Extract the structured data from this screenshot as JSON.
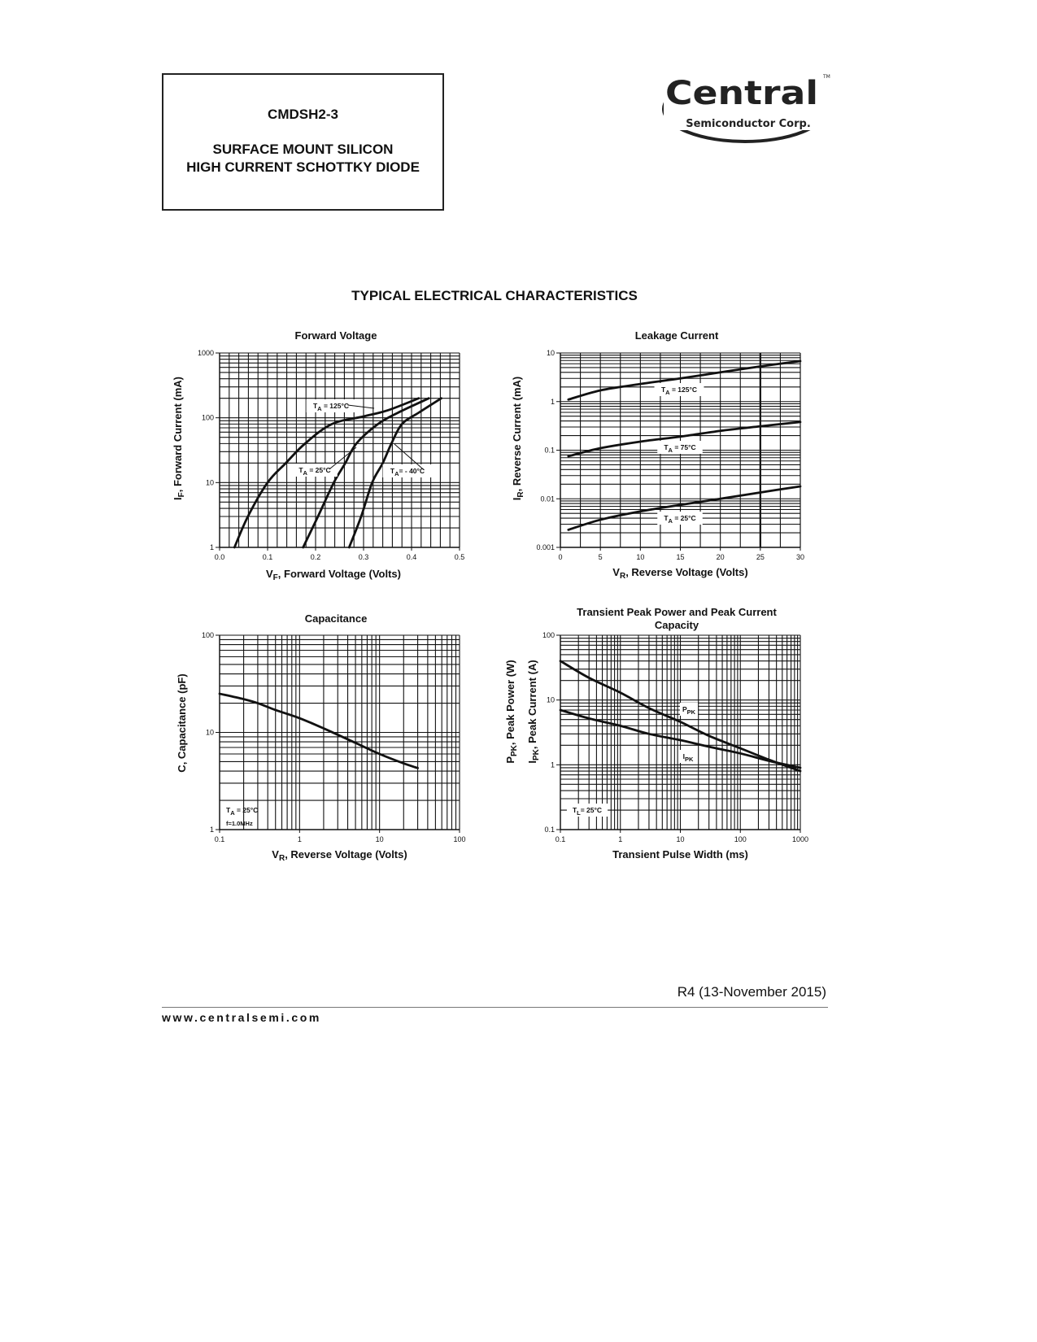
{
  "header": {
    "part_number": "CMDSH2-3",
    "desc_line1": "SURFACE MOUNT SILICON",
    "desc_line2": "HIGH CURRENT SCHOTTKY DIODE"
  },
  "logo": {
    "brand": "Central",
    "sub": "Semiconductor Corp.",
    "tm": "TM"
  },
  "section_title": "TYPICAL ELECTRICAL CHARACTERISTICS",
  "footer": {
    "revision": "R4 (13-November 2015)",
    "website": "www.centralsemi.com"
  },
  "colors": {
    "ink": "#111111",
    "grid": "#111111",
    "background": "#ffffff"
  },
  "chart_data": [
    {
      "id": "forward",
      "type": "line",
      "title": "Forward Voltage",
      "xlabel": {
        "pre": "V",
        "sub": "F",
        "post": ", Forward Voltage (Volts)"
      },
      "ylabel": {
        "pre": "I",
        "sub": "F",
        "post": ", Forward Current (mA)"
      },
      "xscale": "linear",
      "yscale": "log",
      "xlim": [
        0,
        0.5
      ],
      "ylim": [
        1,
        1000
      ],
      "xticks": [
        "0.0",
        "0.1",
        "0.2",
        "0.3",
        "0.4",
        "0.5"
      ],
      "yticks": [
        "1",
        "10",
        "100",
        "1000"
      ],
      "grid": true,
      "series": [
        {
          "name": "TA = 125°C",
          "x": [
            0.031,
            0.059,
            0.1,
            0.138,
            0.178,
            0.234,
            0.3,
            0.35,
            0.415
          ],
          "y": [
            1,
            3,
            10,
            20,
            40,
            80,
            105,
            130,
            200
          ]
        },
        {
          "name": "TA = 25°C",
          "x": [
            0.174,
            0.205,
            0.238,
            0.262,
            0.285,
            0.33,
            0.372,
            0.436
          ],
          "y": [
            1,
            3,
            10,
            20,
            40,
            80,
            120,
            200
          ]
        },
        {
          "name": "TA= - 40°C",
          "x": [
            0.27,
            0.295,
            0.318,
            0.34,
            0.358,
            0.38,
            0.415,
            0.462
          ],
          "y": [
            1,
            3,
            10,
            20,
            40,
            80,
            120,
            200
          ]
        }
      ],
      "annotations": [
        {
          "pre": "T",
          "sub": "A",
          "post": " = 125°C"
        },
        {
          "pre": "T",
          "sub": "A",
          "post": " = 25°C"
        },
        {
          "pre": "T",
          "sub": "A",
          "post": "= - 40°C"
        }
      ]
    },
    {
      "id": "leakage",
      "type": "line",
      "title": "Leakage Current",
      "xlabel": {
        "pre": "V",
        "sub": "R",
        "post": ", Reverse Voltage (Volts)"
      },
      "ylabel": {
        "pre": "I",
        "sub": "R",
        "post": ", Reverse Current (mA)"
      },
      "xscale": "linear",
      "yscale": "log",
      "xlim": [
        0,
        30
      ],
      "ylim": [
        0.001,
        10
      ],
      "xticks": [
        "0",
        "5",
        "10",
        "15",
        "20",
        "25",
        "30"
      ],
      "yticks": [
        "0.001",
        "0.01",
        "0.1",
        "1",
        "10"
      ],
      "grid": true,
      "series": [
        {
          "name": "TA = 125°C",
          "x": [
            1,
            5,
            10,
            15,
            20,
            25,
            30
          ],
          "y": [
            1.1,
            1.7,
            2.3,
            3.0,
            4.0,
            5.3,
            6.8
          ]
        },
        {
          "name": "TA = 75°C",
          "x": [
            1,
            5,
            10,
            15,
            20,
            25,
            30
          ],
          "y": [
            0.075,
            0.11,
            0.15,
            0.19,
            0.25,
            0.31,
            0.38
          ]
        },
        {
          "name": "TA = 25°C",
          "x": [
            1,
            5,
            10,
            15,
            20,
            25,
            30
          ],
          "y": [
            0.0023,
            0.0037,
            0.0055,
            0.0075,
            0.01,
            0.0135,
            0.018
          ]
        }
      ],
      "annotations": [
        {
          "pre": "T",
          "sub": "A",
          "post": " = 125°C"
        },
        {
          "pre": "T",
          "sub": "A",
          "post": " = 75°C"
        },
        {
          "pre": "T",
          "sub": "A",
          "post": " = 25°C"
        }
      ]
    },
    {
      "id": "capacitance",
      "type": "line",
      "title": "Capacitance",
      "xlabel": {
        "pre": "V",
        "sub": "R",
        "post": ", Reverse Voltage (Volts)"
      },
      "ylabel": {
        "pre": "C, Capacitance (pF)",
        "sub": "",
        "post": ""
      },
      "xscale": "log",
      "yscale": "log",
      "xlim": [
        0.1,
        100
      ],
      "ylim": [
        1,
        100
      ],
      "xticks": [
        "0.1",
        "1",
        "10",
        "100"
      ],
      "yticks": [
        "1",
        "10",
        "100"
      ],
      "grid": true,
      "series": [
        {
          "x": [
            0.1,
            0.2,
            0.3,
            0.5,
            1,
            2,
            5,
            10,
            20,
            30
          ],
          "y": [
            25,
            22,
            20,
            17,
            14,
            11,
            7.8,
            6,
            4.8,
            4.3
          ]
        }
      ],
      "annotations": [
        {
          "pre": "T",
          "sub": "A",
          "post": " = 25°C"
        },
        {
          "pre": "f=1.0MHz",
          "sub": "",
          "post": ""
        }
      ]
    },
    {
      "id": "transient",
      "type": "line",
      "title": "Transient Peak Power and Peak Current Capacity",
      "xlabel": {
        "pre": "Transient Pulse Width (ms)",
        "sub": "",
        "post": ""
      },
      "ylabel": {
        "pre": "P",
        "sub": "PK",
        "post": ", Peak Power (W)"
      },
      "ylabel2": {
        "pre": "I",
        "sub": "PK",
        "post": ", Peak Current (A)"
      },
      "xscale": "log",
      "yscale": "log",
      "xlim": [
        0.1,
        1000
      ],
      "ylim": [
        0.1,
        100
      ],
      "xticks": [
        "0.1",
        "1",
        "10",
        "100",
        "1000"
      ],
      "yticks": [
        "0.1",
        "1",
        "10",
        "100"
      ],
      "grid": true,
      "series": [
        {
          "name": "PPK",
          "x": [
            0.1,
            0.3,
            1,
            3,
            10,
            30,
            100,
            300,
            1000
          ],
          "y": [
            40,
            22,
            13,
            7.5,
            4.6,
            2.8,
            1.8,
            1.2,
            0.8
          ]
        },
        {
          "name": "IPK",
          "x": [
            0.1,
            0.3,
            1,
            3,
            10,
            30,
            100,
            300,
            1000
          ],
          "y": [
            7,
            5.2,
            4,
            3,
            2.4,
            1.9,
            1.5,
            1.15,
            0.9
          ]
        }
      ],
      "annotations": [
        {
          "pre": "P",
          "sub": "PK",
          "post": ""
        },
        {
          "pre": "I",
          "sub": "PK",
          "post": ""
        },
        {
          "pre": "T",
          "sub": "L",
          "post": "= 25°C"
        }
      ]
    }
  ]
}
